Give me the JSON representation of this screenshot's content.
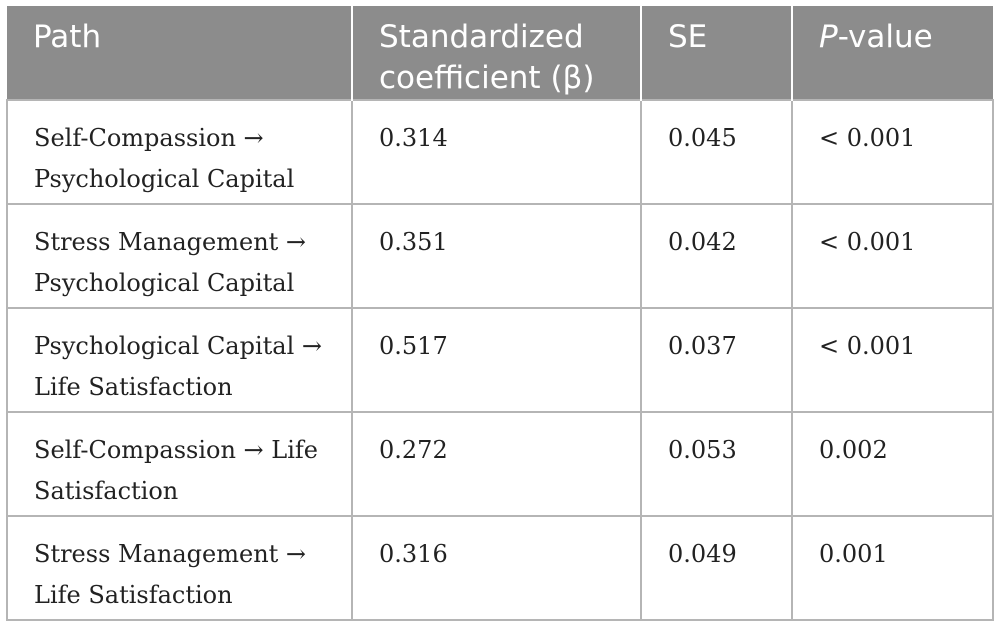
{
  "table": {
    "headers": {
      "path": "Path",
      "coef": "Standardized coefficient (β)",
      "se": "SE",
      "p_italic": "P",
      "p_rest": "-value"
    },
    "rows": [
      {
        "path": "Self-Compassion → Psychological Capital",
        "coef": "0.314",
        "se": "0.045",
        "p": "< 0.001"
      },
      {
        "path": "Stress Management → Psychological Capital",
        "coef": "0.351",
        "se": "0.042",
        "p": "< 0.001"
      },
      {
        "path": "Psychological Capital → Life Satisfaction",
        "coef": "0.517",
        "se": "0.037",
        "p": "< 0.001"
      },
      {
        "path": "Self-Compassion → Life Satisfaction",
        "coef": "0.272",
        "se": "0.053",
        "p": "0.002"
      },
      {
        "path": "Stress Management → Life Satisfaction",
        "coef": "0.316",
        "se": "0.049",
        "p": "0.001"
      }
    ]
  }
}
